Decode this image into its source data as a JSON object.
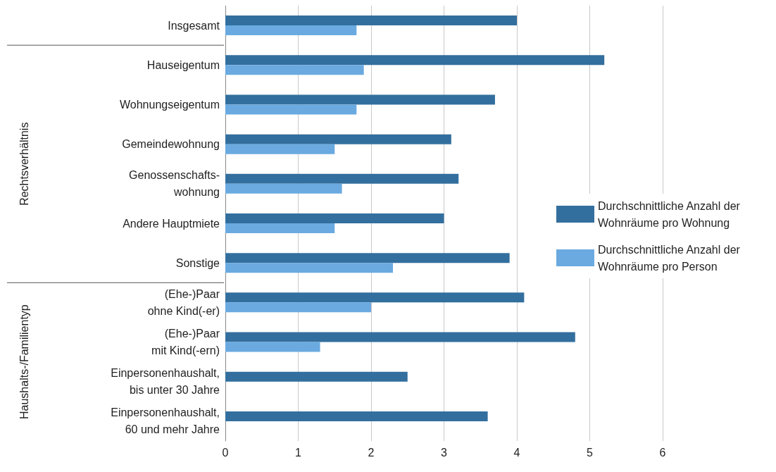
{
  "chart_data": {
    "type": "bar",
    "orientation": "horizontal",
    "categories": [
      "Insgesamt",
      "Hauseigentum",
      "Wohnungseigentum",
      "Gemeindewohnung",
      "Genossenschafts-\nwohnung",
      "Andere Hauptmiete",
      "Sonstige",
      "(Ehe-)Paar\nohne Kind(-er)",
      "(Ehe-)Paar\nmit Kind(-ern)",
      "Einpersonenhaushalt,\nbis unter 30 Jahre",
      "Einpersonenhaushalt,\n60 und mehr Jahre"
    ],
    "series": [
      {
        "name": "Durchschnittliche Anzahl der Wohnräume pro Wohnung",
        "color": "#336f9e",
        "values": [
          4.0,
          5.2,
          3.7,
          3.1,
          3.2,
          3.0,
          3.9,
          4.1,
          4.8,
          2.5,
          3.6
        ]
      },
      {
        "name": "Durchschnittliche Anzahl der Wohnräume pro Person",
        "color": "#6aaae0",
        "values": [
          1.8,
          1.9,
          1.8,
          1.5,
          1.6,
          1.5,
          2.3,
          2.0,
          1.3,
          null,
          null
        ]
      }
    ],
    "xlim": [
      0,
      6
    ],
    "xticks": [
      0,
      1,
      2,
      3,
      4,
      5,
      6
    ],
    "grid": "x",
    "legend": "right",
    "annotations": [
      "Rechtsverhältnis",
      "Haushalts-/Familientyp"
    ]
  }
}
